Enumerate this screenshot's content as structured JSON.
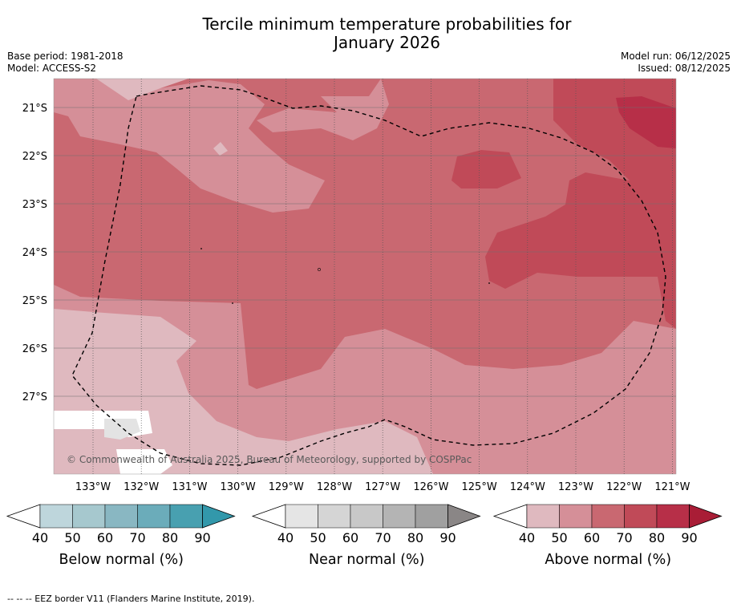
{
  "title": {
    "line1": "Tercile minimum temperature probabilities for",
    "line2": "January 2026"
  },
  "meta_left": {
    "base_period": "Base period: 1981-2018",
    "model": "Model: ACCESS-S2"
  },
  "meta_right": {
    "model_run": "Model run: 06/12/2025",
    "issued": "Issued: 08/12/2025"
  },
  "map": {
    "copyright": "© Commonwealth of Australia 2025, Bureau of Meteorology, supported by COSPPac",
    "lat_labels": [
      "21°S",
      "22°S",
      "23°S",
      "24°S",
      "25°S",
      "26°S",
      "27°S"
    ],
    "lon_labels": [
      "133°W",
      "132°W",
      "131°W",
      "130°W",
      "129°W",
      "128°W",
      "127°W",
      "126°W",
      "125°W",
      "124°W",
      "123°W",
      "122°W",
      "121°W"
    ]
  },
  "colorbars": [
    {
      "name": "below",
      "label": "Below normal (%)",
      "ticks": [
        "40",
        "50",
        "60",
        "70",
        "80",
        "90"
      ],
      "colors": [
        "#bed6dc",
        "#a6c8ce",
        "#89b7c2",
        "#6bacba",
        "#48a0b0",
        "#3298ab"
      ]
    },
    {
      "name": "near",
      "label": "Near normal (%)",
      "ticks": [
        "40",
        "50",
        "60",
        "70",
        "80",
        "90"
      ],
      "colors": [
        "#e5e5e5",
        "#d5d5d5",
        "#c8c8c8",
        "#b4b4b4",
        "#a0a0a0",
        "#8a8686"
      ]
    },
    {
      "name": "above",
      "label": "Above normal (%)",
      "ticks": [
        "40",
        "50",
        "60",
        "70",
        "80",
        "90"
      ],
      "colors": [
        "#dfb9bf",
        "#d58f98",
        "#c96871",
        "#c04a58",
        "#b72f48",
        "#a91d36"
      ]
    }
  ],
  "footnote": "--  --  -- EEZ border V11 (Flanders Marine Institute, 2019)."
}
